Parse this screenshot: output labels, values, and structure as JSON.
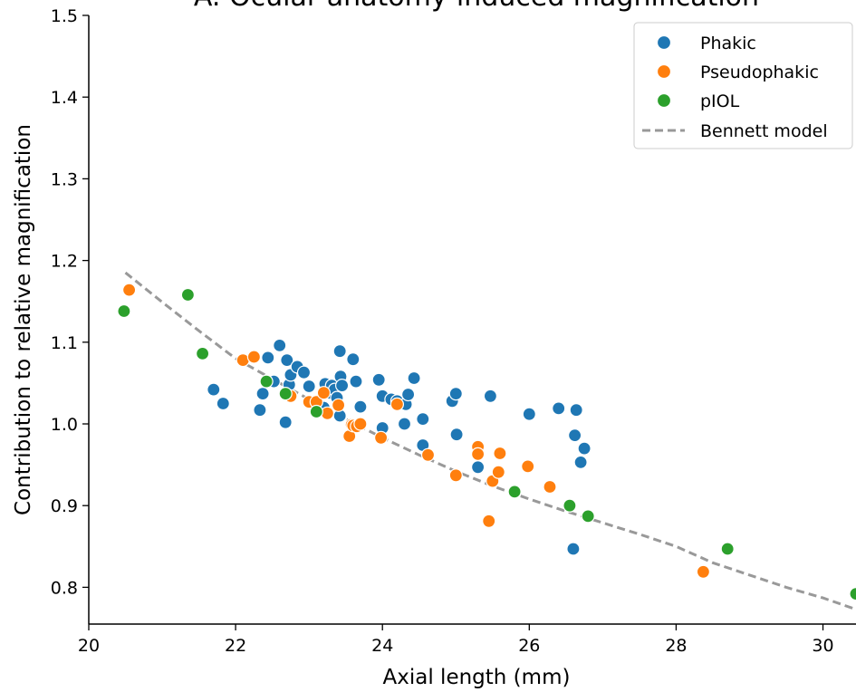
{
  "chart_data": {
    "type": "scatter",
    "title": "A. Ocular anatomy-induced magnification",
    "xlabel": "Axial length (mm)",
    "ylabel": "Contribution to relative magnification",
    "xlim": [
      20,
      30.45
    ],
    "ylim": [
      0.755,
      1.5
    ],
    "xticks": [
      20,
      22,
      24,
      26,
      28,
      30
    ],
    "yticks": [
      0.8,
      0.9,
      1.0,
      1.1,
      1.2,
      1.3,
      1.4,
      1.5
    ],
    "xtick_labels": [
      "20",
      "22",
      "24",
      "26",
      "28",
      "30"
    ],
    "ytick_labels": [
      "0.8",
      "0.9",
      "1.0",
      "1.1",
      "1.2",
      "1.3",
      "1.4",
      "1.5"
    ],
    "grid": false,
    "legend_position": "top-right",
    "series": [
      {
        "name": "Phakic",
        "color": "#1f77b4",
        "points": [
          [
            21.7,
            1.042
          ],
          [
            21.83,
            1.025
          ],
          [
            22.33,
            1.017
          ],
          [
            22.37,
            1.037
          ],
          [
            22.44,
            1.081
          ],
          [
            22.52,
            1.052
          ],
          [
            22.6,
            1.096
          ],
          [
            22.68,
            1.002
          ],
          [
            22.7,
            1.078
          ],
          [
            22.73,
            1.048
          ],
          [
            22.75,
            1.06
          ],
          [
            22.84,
            1.07
          ],
          [
            22.93,
            1.063
          ],
          [
            23.0,
            1.046
          ],
          [
            23.2,
            1.02
          ],
          [
            23.22,
            1.049
          ],
          [
            23.28,
            1.038
          ],
          [
            23.31,
            1.047
          ],
          [
            23.35,
            1.042
          ],
          [
            23.38,
            1.032
          ],
          [
            23.42,
            1.089
          ],
          [
            23.43,
            1.058
          ],
          [
            23.45,
            1.047
          ],
          [
            23.42,
            1.01
          ],
          [
            23.6,
            1.079
          ],
          [
            23.64,
            1.052
          ],
          [
            23.7,
            1.021
          ],
          [
            23.95,
            1.054
          ],
          [
            24.0,
            1.034
          ],
          [
            24.0,
            0.995
          ],
          [
            24.12,
            1.03
          ],
          [
            24.2,
            1.028
          ],
          [
            24.3,
            1.0
          ],
          [
            24.32,
            1.024
          ],
          [
            24.35,
            1.036
          ],
          [
            24.43,
            1.056
          ],
          [
            24.55,
            1.006
          ],
          [
            24.55,
            0.974
          ],
          [
            24.95,
            1.028
          ],
          [
            25.0,
            1.037
          ],
          [
            25.01,
            0.987
          ],
          [
            25.3,
            0.947
          ],
          [
            25.47,
            1.034
          ],
          [
            26.0,
            1.012
          ],
          [
            26.4,
            1.019
          ],
          [
            26.6,
            0.847
          ],
          [
            26.62,
            0.986
          ],
          [
            26.64,
            1.017
          ],
          [
            26.7,
            0.953
          ],
          [
            26.75,
            0.97
          ]
        ]
      },
      {
        "name": "Pseudophakic",
        "color": "#ff7f0e",
        "points": [
          [
            20.55,
            1.164
          ],
          [
            22.1,
            1.078
          ],
          [
            22.25,
            1.082
          ],
          [
            22.75,
            1.034
          ],
          [
            23.0,
            1.027
          ],
          [
            23.1,
            1.027
          ],
          [
            23.2,
            1.038
          ],
          [
            23.25,
            1.013
          ],
          [
            23.4,
            1.023
          ],
          [
            23.55,
            0.985
          ],
          [
            23.58,
            0.999
          ],
          [
            23.6,
            0.998
          ],
          [
            23.65,
            0.997
          ],
          [
            23.7,
            1.0
          ],
          [
            23.98,
            0.983
          ],
          [
            24.2,
            1.024
          ],
          [
            24.62,
            0.962
          ],
          [
            25.0,
            0.937
          ],
          [
            25.3,
            0.972
          ],
          [
            25.3,
            0.963
          ],
          [
            25.45,
            0.881
          ],
          [
            25.5,
            0.93
          ],
          [
            25.58,
            0.941
          ],
          [
            25.6,
            0.964
          ],
          [
            25.98,
            0.948
          ],
          [
            26.28,
            0.923
          ],
          [
            28.37,
            0.819
          ]
        ]
      },
      {
        "name": "pIOL",
        "color": "#2ca02c",
        "points": [
          [
            20.48,
            1.138
          ],
          [
            21.35,
            1.158
          ],
          [
            21.55,
            1.086
          ],
          [
            22.42,
            1.052
          ],
          [
            22.68,
            1.037
          ],
          [
            23.1,
            1.015
          ],
          [
            25.8,
            0.917
          ],
          [
            26.55,
            0.9
          ],
          [
            26.8,
            0.887
          ],
          [
            28.7,
            0.847
          ],
          [
            30.45,
            0.792
          ]
        ]
      }
    ],
    "model_line": {
      "name": "Bennett model",
      "color": "#999999",
      "style": "dashed",
      "points": [
        [
          20.5,
          1.185
        ],
        [
          21.0,
          1.149
        ],
        [
          21.5,
          1.114
        ],
        [
          22.0,
          1.08
        ],
        [
          22.5,
          1.055
        ],
        [
          23.0,
          1.03
        ],
        [
          23.5,
          1.006
        ],
        [
          24.0,
          0.983
        ],
        [
          24.5,
          0.962
        ],
        [
          25.0,
          0.942
        ],
        [
          25.5,
          0.924
        ],
        [
          26.0,
          0.908
        ],
        [
          26.5,
          0.893
        ],
        [
          27.0,
          0.879
        ],
        [
          27.5,
          0.865
        ],
        [
          28.0,
          0.85
        ],
        [
          28.5,
          0.83
        ],
        [
          29.0,
          0.815
        ],
        [
          29.5,
          0.8
        ],
        [
          30.0,
          0.787
        ],
        [
          30.45,
          0.773
        ]
      ]
    }
  }
}
